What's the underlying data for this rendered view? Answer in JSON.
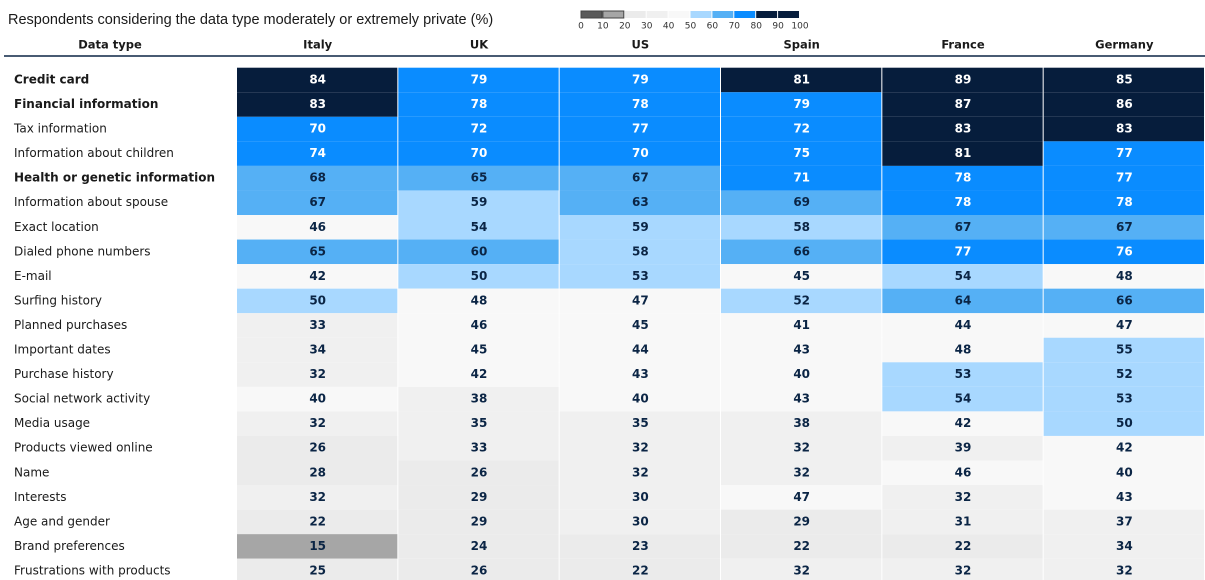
{
  "chart_data": {
    "type": "heatmap",
    "title": "Respondents considering the data type moderately or extremely private (%)",
    "row_header": "Data type",
    "columns": [
      "Italy",
      "UK",
      "US",
      "Spain",
      "France",
      "Germany"
    ],
    "rows": [
      "Credit card",
      "Financial information",
      "Tax information",
      "Information about children",
      "Health or genetic information",
      "Information about spouse",
      "Exact location",
      "Dialed phone numbers",
      "E-mail",
      "Surfing history",
      "Planned purchases",
      "Important dates",
      "Purchase history",
      "Social network activity",
      "Media usage",
      "Products viewed online",
      "Name",
      "Interests",
      "Age and gender",
      "Brand preferences",
      "Frustrations with products"
    ],
    "bold_rows": [
      0,
      1,
      4
    ],
    "values": [
      [
        84,
        79,
        79,
        81,
        89,
        85
      ],
      [
        83,
        78,
        78,
        79,
        87,
        86
      ],
      [
        70,
        72,
        77,
        72,
        83,
        83
      ],
      [
        74,
        70,
        70,
        75,
        81,
        77
      ],
      [
        68,
        65,
        67,
        71,
        78,
        77
      ],
      [
        67,
        59,
        63,
        69,
        78,
        78
      ],
      [
        46,
        54,
        59,
        58,
        67,
        67
      ],
      [
        65,
        60,
        58,
        66,
        77,
        76
      ],
      [
        42,
        50,
        53,
        45,
        54,
        48
      ],
      [
        50,
        48,
        47,
        52,
        64,
        66
      ],
      [
        33,
        46,
        45,
        41,
        44,
        47
      ],
      [
        34,
        45,
        44,
        43,
        48,
        55
      ],
      [
        32,
        42,
        43,
        40,
        53,
        52
      ],
      [
        40,
        38,
        40,
        43,
        54,
        53
      ],
      [
        32,
        35,
        35,
        38,
        42,
        50
      ],
      [
        26,
        33,
        32,
        32,
        39,
        42
      ],
      [
        28,
        26,
        32,
        32,
        46,
        40
      ],
      [
        32,
        29,
        30,
        47,
        32,
        43
      ],
      [
        22,
        29,
        30,
        29,
        31,
        37
      ],
      [
        15,
        24,
        23,
        22,
        22,
        34
      ],
      [
        25,
        26,
        22,
        32,
        32,
        32
      ]
    ],
    "color_bins": [
      0,
      10,
      20,
      30,
      40,
      50,
      60,
      70,
      80,
      90,
      100
    ],
    "colors": [
      "#5a5a5a",
      "#a6a6a6",
      "#ebebeb",
      "#f0f0f0",
      "#f8f8f8",
      "#a8d8ff",
      "#55b0f5",
      "#0a8cff",
      "#061d3c",
      "#061d3c"
    ]
  }
}
